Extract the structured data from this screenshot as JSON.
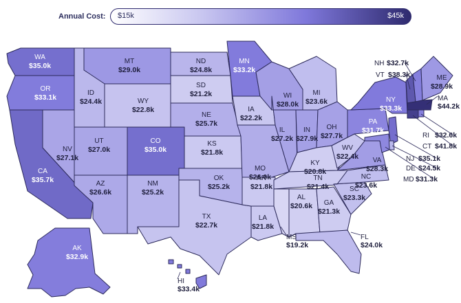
{
  "legend": {
    "label": "Annual Cost:",
    "min": "$15k",
    "max": "$45k",
    "colors": [
      "#ffffff",
      "#c9c7f0",
      "#7f78db",
      "#2e2a6e"
    ]
  },
  "states": [
    {
      "abbr": "WA",
      "value": "$35.0k"
    },
    {
      "abbr": "OR",
      "value": "$33.1k"
    },
    {
      "abbr": "CA",
      "value": "$35.7k"
    },
    {
      "abbr": "NV",
      "value": "$27.1k"
    },
    {
      "abbr": "ID",
      "value": "$24.4k"
    },
    {
      "abbr": "MT",
      "value": "$29.0k"
    },
    {
      "abbr": "WY",
      "value": "$22.8k"
    },
    {
      "abbr": "UT",
      "value": "$27.0k"
    },
    {
      "abbr": "CO",
      "value": "$35.0k"
    },
    {
      "abbr": "AZ",
      "value": "$26.6k"
    },
    {
      "abbr": "NM",
      "value": "$25.2k"
    },
    {
      "abbr": "ND",
      "value": "$24.8k"
    },
    {
      "abbr": "SD",
      "value": "$21.2k"
    },
    {
      "abbr": "NE",
      "value": "$25.7k"
    },
    {
      "abbr": "KS",
      "value": "$21.8k"
    },
    {
      "abbr": "OK",
      "value": "$25.2k"
    },
    {
      "abbr": "TX",
      "value": "$22.7k"
    },
    {
      "abbr": "MN",
      "value": "$33.2k"
    },
    {
      "abbr": "IA",
      "value": "$22.2k"
    },
    {
      "abbr": "MO",
      "value": "$26.0k"
    },
    {
      "abbr": "AR",
      "value": "$21.8k"
    },
    {
      "abbr": "LA",
      "value": "$21.8k"
    },
    {
      "abbr": "WI",
      "value": "$28.0k"
    },
    {
      "abbr": "IL",
      "value": "$27.2k"
    },
    {
      "abbr": "MI",
      "value": "$23.6k"
    },
    {
      "abbr": "IN",
      "value": "$27.9k"
    },
    {
      "abbr": "OH",
      "value": "$27.7k"
    },
    {
      "abbr": "KY",
      "value": "$20.8k"
    },
    {
      "abbr": "TN",
      "value": "$21.4k"
    },
    {
      "abbr": "MS",
      "value": "$19.2k"
    },
    {
      "abbr": "AL",
      "value": "$20.6k"
    },
    {
      "abbr": "GA",
      "value": "$21.3k"
    },
    {
      "abbr": "FL",
      "value": "$24.0k"
    },
    {
      "abbr": "SC",
      "value": "$23.3k"
    },
    {
      "abbr": "NC",
      "value": "$23.6k"
    },
    {
      "abbr": "VA",
      "value": "$28.3k"
    },
    {
      "abbr": "WV",
      "value": "$22.4k"
    },
    {
      "abbr": "PA",
      "value": "$31.7k"
    },
    {
      "abbr": "NY",
      "value": "$33.3k"
    },
    {
      "abbr": "ME",
      "value": "$28.9k"
    },
    {
      "abbr": "AK",
      "value": "$32.9k"
    },
    {
      "abbr": "HI",
      "value": "$33.4k"
    },
    {
      "abbr": "NH",
      "value": "$32.7k"
    },
    {
      "abbr": "VT",
      "value": "$38.3k"
    },
    {
      "abbr": "MA",
      "value": "$44.2k"
    },
    {
      "abbr": "RI",
      "value": "$32.6k"
    },
    {
      "abbr": "CT",
      "value": "$41.8k"
    },
    {
      "abbr": "NJ",
      "value": "$35.1k"
    },
    {
      "abbr": "DE",
      "value": "$24.5k"
    },
    {
      "abbr": "MD",
      "value": "$31.3k"
    }
  ]
}
